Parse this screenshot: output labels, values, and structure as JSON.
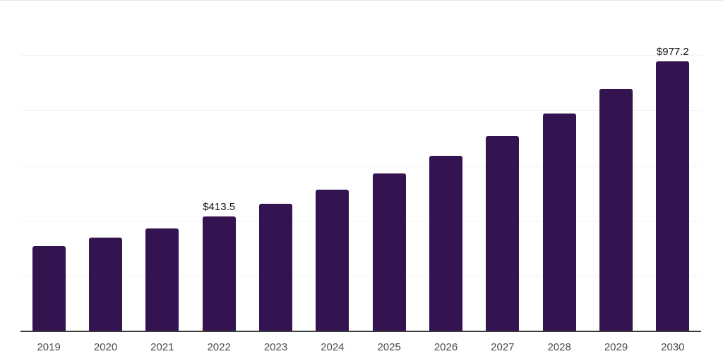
{
  "chart_data": {
    "type": "bar",
    "title": "",
    "xlabel": "",
    "ylabel": "",
    "categories": [
      "2019",
      "2020",
      "2021",
      "2022",
      "2023",
      "2024",
      "2025",
      "2026",
      "2027",
      "2028",
      "2029",
      "2030"
    ],
    "values": [
      306,
      337,
      372,
      413.5,
      460,
      512,
      570,
      634,
      707,
      788,
      877,
      977.2
    ],
    "ylim": [
      0,
      1200
    ],
    "grid": true,
    "grid_step": 200,
    "legend": "none",
    "bar_color": "#331450",
    "data_labels": [
      {
        "category": "2022",
        "text": "$413.5"
      },
      {
        "category": "2030",
        "text": "$977.2"
      }
    ]
  }
}
